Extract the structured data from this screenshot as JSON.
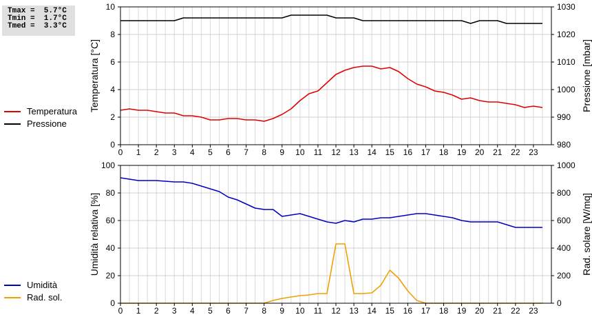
{
  "stats": {
    "tmax": "Tmax =  5.7°C",
    "tmin": "Tmin =  1.7°C",
    "tmed": "Tmed =  3.3°C"
  },
  "chart_data": [
    {
      "type": "line",
      "xlim": [
        0,
        24
      ],
      "xticks": [
        0,
        1,
        2,
        3,
        4,
        5,
        6,
        7,
        8,
        9,
        10,
        11,
        12,
        13,
        14,
        15,
        16,
        17,
        18,
        19,
        20,
        21,
        22,
        23
      ],
      "ylabel": "Temperatura [°C]",
      "ylim": [
        0,
        10
      ],
      "yticks": [
        0,
        2,
        4,
        6,
        8,
        10
      ],
      "y2label": "Pressione [mbar]",
      "y2lim": [
        980,
        1030
      ],
      "y2ticks": [
        980,
        990,
        1000,
        1010,
        1020,
        1030
      ],
      "grid": true,
      "legend_position": "left",
      "series": [
        {
          "name": "Temperatura",
          "axis": "left",
          "color": "#e00000",
          "x": [
            0,
            0.5,
            1,
            1.5,
            2,
            2.5,
            3,
            3.5,
            4,
            4.5,
            5,
            5.5,
            6,
            6.5,
            7,
            7.5,
            8,
            8.5,
            9,
            9.5,
            10,
            10.5,
            11,
            11.5,
            12,
            12.5,
            13,
            13.5,
            14,
            14.5,
            15,
            15.5,
            16,
            16.5,
            17,
            17.5,
            18,
            18.5,
            19,
            19.5,
            20,
            20.5,
            21,
            21.5,
            22,
            22.5,
            23,
            23.5
          ],
          "values": [
            2.5,
            2.6,
            2.5,
            2.5,
            2.4,
            2.3,
            2.3,
            2.1,
            2.1,
            2.0,
            1.8,
            1.8,
            1.9,
            1.9,
            1.8,
            1.8,
            1.7,
            1.9,
            2.2,
            2.6,
            3.2,
            3.7,
            3.9,
            4.5,
            5.1,
            5.4,
            5.6,
            5.7,
            5.7,
            5.5,
            5.6,
            5.3,
            4.8,
            4.4,
            4.2,
            3.9,
            3.8,
            3.6,
            3.3,
            3.4,
            3.2,
            3.1,
            3.1,
            3.0,
            2.9,
            2.7,
            2.8,
            2.7
          ]
        },
        {
          "name": "Pressione",
          "axis": "right",
          "color": "#000000",
          "x": [
            0,
            3,
            3.5,
            9,
            9.5,
            11.5,
            12,
            13,
            13.5,
            19,
            19.5,
            20,
            21,
            21.5,
            23.5
          ],
          "values": [
            1025,
            1025,
            1026,
            1026,
            1027,
            1027,
            1026,
            1026,
            1025,
            1025,
            1024,
            1025,
            1025,
            1024,
            1024
          ]
        }
      ]
    },
    {
      "type": "line",
      "xlim": [
        0,
        24
      ],
      "xticks": [
        0,
        1,
        2,
        3,
        4,
        5,
        6,
        7,
        8,
        9,
        10,
        11,
        12,
        13,
        14,
        15,
        16,
        17,
        18,
        19,
        20,
        21,
        22,
        23
      ],
      "ylabel": "Umidità relativa [%]",
      "ylim": [
        0,
        100
      ],
      "yticks": [
        0,
        20,
        40,
        60,
        80,
        100
      ],
      "y2label": "Rad. solare [W/mq]",
      "y2lim": [
        0,
        1000
      ],
      "y2ticks": [
        0,
        200,
        400,
        600,
        800,
        1000
      ],
      "grid": true,
      "legend_position": "left",
      "series": [
        {
          "name": "Umidità",
          "axis": "left",
          "color": "#0000c0",
          "x": [
            0,
            0.5,
            1,
            2,
            3,
            3.5,
            4,
            4.5,
            5,
            5.5,
            6,
            6.5,
            7,
            7.5,
            8,
            8.5,
            9,
            9.5,
            10,
            10.5,
            11,
            11.5,
            12,
            12.5,
            13,
            13.5,
            14,
            14.5,
            15,
            15.5,
            16,
            16.5,
            17,
            17.5,
            18,
            18.5,
            19,
            19.5,
            20,
            20.5,
            21,
            21.5,
            22,
            22.5,
            23,
            23.5
          ],
          "values": [
            91,
            90,
            89,
            89,
            88,
            88,
            87,
            85,
            83,
            81,
            77,
            75,
            72,
            69,
            68,
            68,
            63,
            64,
            65,
            63,
            61,
            59,
            58,
            60,
            59,
            61,
            61,
            62,
            62,
            63,
            64,
            65,
            65,
            64,
            63,
            62,
            60,
            59,
            59,
            59,
            59,
            57,
            55,
            55,
            55,
            55
          ]
        },
        {
          "name": "Rad. sol.",
          "axis": "right",
          "color": "#f0a000",
          "x": [
            0,
            8,
            8.5,
            9,
            9.5,
            10,
            10.5,
            11,
            11.5,
            12,
            12.5,
            13,
            13.5,
            14,
            14.5,
            15,
            15.5,
            16,
            16.5,
            17,
            23.5
          ],
          "values": [
            0,
            0,
            20,
            35,
            45,
            55,
            60,
            70,
            70,
            430,
            430,
            70,
            70,
            75,
            130,
            240,
            180,
            90,
            20,
            0,
            0
          ]
        }
      ]
    }
  ]
}
